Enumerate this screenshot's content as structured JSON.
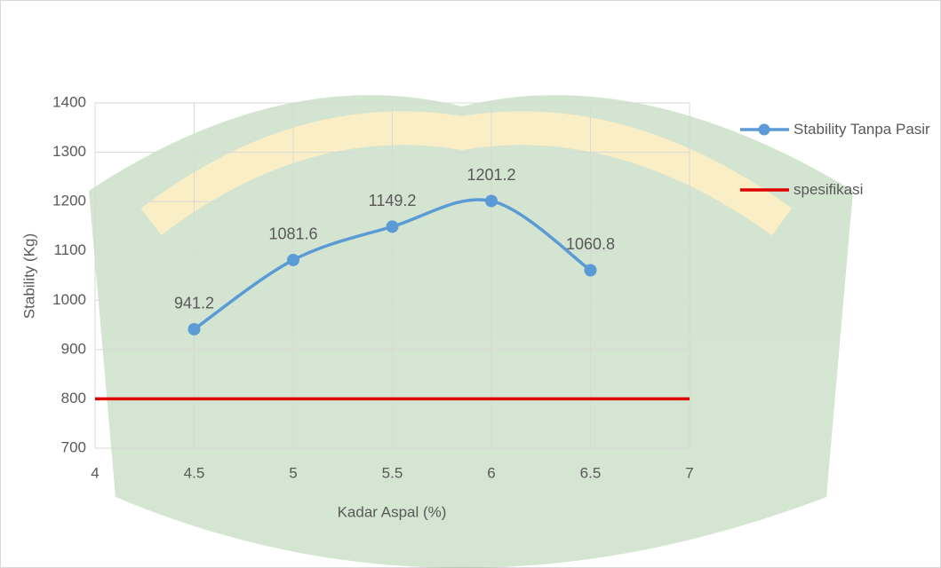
{
  "chart_data": {
    "type": "line",
    "x_label": "Kadar Aspal (%)",
    "y_label": "Stability (Kg)",
    "series": [
      {
        "name": "Stability Tanpa Pasir",
        "color": "#5b9bd5",
        "smooth": true,
        "markers": true,
        "data_labels": true,
        "x": [
          4.5,
          5,
          5.5,
          6,
          6.5
        ],
        "values": [
          941.2,
          1081.6,
          1149.2,
          1201.2,
          1060.8
        ]
      },
      {
        "name": "spesifikasi",
        "color": "#e00000",
        "smooth": false,
        "markers": false,
        "data_labels": false,
        "x": [
          4,
          7
        ],
        "values": [
          800,
          800
        ]
      }
    ],
    "xlim": [
      4,
      7
    ],
    "xticks": [
      4,
      4.5,
      5,
      5.5,
      6,
      6.5,
      7
    ],
    "ylim": [
      700,
      1400
    ],
    "yticks": [
      700,
      800,
      900,
      1000,
      1100,
      1200,
      1300,
      1400
    ],
    "grid": true,
    "legend": "right"
  }
}
